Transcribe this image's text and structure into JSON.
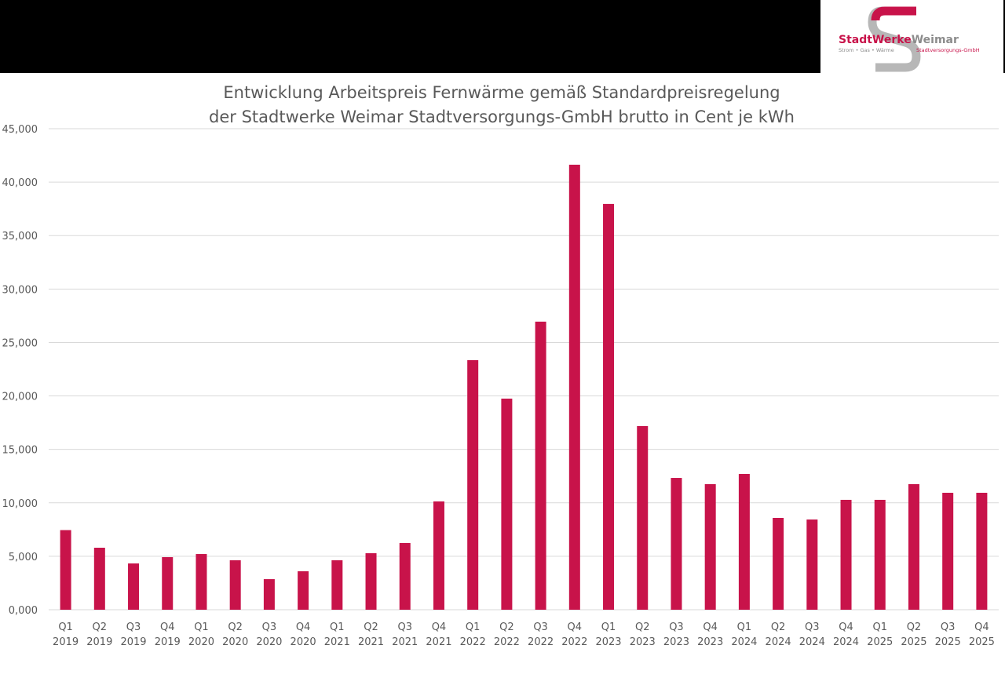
{
  "logo": {
    "brand_left": "StadtWerke",
    "brand_right": "Weimar",
    "tagline": "Strom • Gas • Wärme",
    "company": "Stadtversorgungs-GmbH"
  },
  "chart_data": {
    "type": "bar",
    "title": [
      "Entwicklung Arbeitspreis Fernwärme gemäß Standardpreisregelung",
      "der Stadtwerke Weimar Stadtversorgungs-GmbH brutto in Cent je kWh"
    ],
    "categories": [
      "Q1 2019",
      "Q2 2019",
      "Q3 2019",
      "Q4 2019",
      "Q1 2020",
      "Q2 2020",
      "Q3 2020",
      "Q4 2020",
      "Q1 2021",
      "Q2 2021",
      "Q3 2021",
      "Q4 2021",
      "Q1 2022",
      "Q2 2022",
      "Q3 2022",
      "Q4 2022",
      "Q1 2023",
      "Q2 2023",
      "Q3 2023",
      "Q4 2023",
      "Q1 2024",
      "Q2 2024",
      "Q3 2024",
      "Q4 2024",
      "Q1 2025",
      "Q2 2025",
      "Q3 2025",
      "Q4 2025"
    ],
    "values": [
      7.45,
      5.8,
      4.33,
      4.92,
      5.21,
      4.63,
      2.86,
      3.6,
      4.63,
      5.29,
      6.24,
      10.13,
      23.35,
      19.75,
      26.95,
      41.63,
      37.96,
      17.18,
      12.33,
      11.75,
      12.7,
      8.59,
      8.44,
      10.28,
      10.28,
      11.75,
      10.94,
      10.94
    ],
    "color": "#c8134a",
    "ylim": [
      0,
      45
    ],
    "yticks": [
      {
        "value": 0,
        "label": "0,000"
      },
      {
        "value": 5,
        "label": "5,000"
      },
      {
        "value": 10,
        "label": "10,000"
      },
      {
        "value": 15,
        "label": "15,000"
      },
      {
        "value": 20,
        "label": "20,000"
      },
      {
        "value": 25,
        "label": "25,000"
      },
      {
        "value": 30,
        "label": "30,000"
      },
      {
        "value": 35,
        "label": "35,000"
      },
      {
        "value": 40,
        "label": "40,000"
      },
      {
        "value": 45,
        "label": "45,000"
      }
    ],
    "grid": true
  }
}
